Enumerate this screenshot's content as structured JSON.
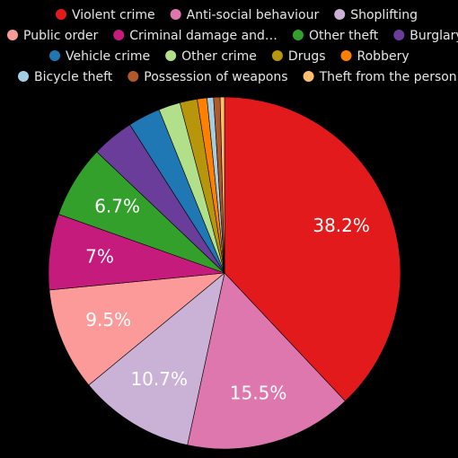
{
  "chart_data": {
    "type": "pie",
    "legend_position": "top",
    "slices": [
      {
        "label": "Violent crime",
        "value": 38.2,
        "color": "#e31a1c",
        "display": "38.2%"
      },
      {
        "label": "Anti-social behaviour",
        "value": 15.5,
        "color": "#de77ae",
        "display": "15.5%"
      },
      {
        "label": "Shoplifting",
        "value": 10.7,
        "color": "#cab2d6",
        "display": "10.7%"
      },
      {
        "label": "Public order",
        "value": 9.5,
        "color": "#fb9a99",
        "display": "9.5%"
      },
      {
        "label": "Criminal damage and…",
        "value": 7.0,
        "color": "#c51b7d",
        "display": "7%"
      },
      {
        "label": "Other theft",
        "value": 6.7,
        "color": "#33a02c",
        "display": "6.7%"
      },
      {
        "label": "Burglary",
        "value": 3.9,
        "color": "#6a3d9a",
        "display": ""
      },
      {
        "label": "Vehicle crime",
        "value": 3.0,
        "color": "#1f78b4",
        "display": ""
      },
      {
        "label": "Other crime",
        "value": 2.0,
        "color": "#b2df8a",
        "display": ""
      },
      {
        "label": "Drugs",
        "value": 1.6,
        "color": "#b8960b",
        "display": ""
      },
      {
        "label": "Robbery",
        "value": 0.9,
        "color": "#ff7f00",
        "display": ""
      },
      {
        "label": "Bicycle theft",
        "value": 0.6,
        "color": "#a6cee3",
        "display": ""
      },
      {
        "label": "Possession of weapons",
        "value": 0.6,
        "color": "#b15928",
        "display": ""
      },
      {
        "label": "Theft from the person",
        "value": 0.4,
        "color": "#fdbf6f",
        "display": ""
      }
    ]
  }
}
